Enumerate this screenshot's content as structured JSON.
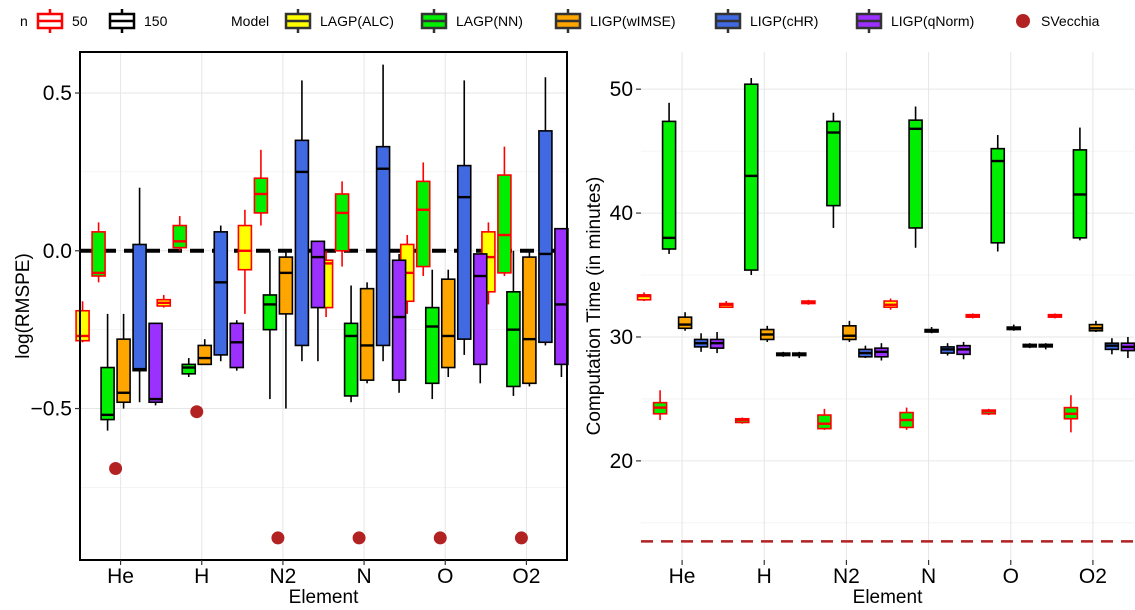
{
  "legend": {
    "n_title": "n",
    "model_title": "Model",
    "n_items": [
      {
        "label": "50",
        "color": "#ff0000"
      },
      {
        "label": "150",
        "color": "#000000"
      }
    ],
    "model_items": [
      {
        "label": "LAGP(ALC)",
        "color": "#ffff00"
      },
      {
        "label": "LAGP(NN)",
        "color": "#00ee00"
      },
      {
        "label": "LIGP(wIMSE)",
        "color": "#ffa500"
      },
      {
        "label": "LIGP(cHR)",
        "color": "#4169e1"
      },
      {
        "label": "LIGP(qNorm)",
        "color": "#9b30ff"
      },
      {
        "label": "SVecchia",
        "color": "#b22222",
        "point": true
      }
    ]
  },
  "chart_data": [
    {
      "type": "box",
      "xlabel": "Element",
      "ylabel": "log(RMSPE)",
      "categories": [
        "He",
        "H",
        "N2",
        "N",
        "O",
        "O2"
      ],
      "ylim": [
        -0.98,
        0.63
      ],
      "yticks": [
        -0.5,
        0.0,
        0.5
      ],
      "ytick_labels": [
        "−0.5",
        "0.0",
        "0.5"
      ],
      "reference_line": {
        "y": 0.0,
        "style": "dashed",
        "color": "#000000"
      },
      "grid": true,
      "series": [
        {
          "name": "LAGP(ALC)",
          "n": "50",
          "fill": "#ffff00",
          "border": "#ff0000",
          "boxes": [
            [
              -0.29,
              -0.285,
              -0.27,
              -0.19,
              -0.16
            ],
            [
              -0.18,
              -0.175,
              -0.165,
              -0.155,
              -0.14
            ],
            [
              -0.2,
              -0.06,
              0.0,
              0.08,
              0.13
            ],
            [
              -0.21,
              -0.18,
              -0.04,
              -0.03,
              0.0
            ],
            [
              -0.2,
              -0.16,
              -0.07,
              0.02,
              0.05
            ],
            [
              -0.17,
              -0.13,
              -0.02,
              0.06,
              0.09
            ]
          ]
        },
        {
          "name": "LAGP(NN)",
          "n": "50",
          "fill": "#00ee00",
          "border": "#ff0000",
          "boxes": [
            [
              -0.1,
              -0.08,
              -0.07,
              0.06,
              0.09
            ],
            [
              0.0,
              0.01,
              0.03,
              0.08,
              0.11
            ],
            [
              0.08,
              0.12,
              0.18,
              0.23,
              0.32
            ],
            [
              -0.05,
              0.0,
              0.12,
              0.18,
              0.22
            ],
            [
              -0.08,
              -0.05,
              0.13,
              0.22,
              0.28
            ],
            [
              -0.08,
              -0.07,
              0.05,
              0.24,
              0.33
            ]
          ]
        },
        {
          "name": "LAGP(NN)",
          "n": "150",
          "fill": "#00ee00",
          "border": "#000000",
          "boxes": [
            [
              -0.57,
              -0.535,
              -0.52,
              -0.37,
              -0.2
            ],
            [
              -0.4,
              -0.39,
              -0.37,
              -0.36,
              -0.34
            ],
            [
              -0.47,
              -0.25,
              -0.17,
              -0.14,
              0.0
            ],
            [
              -0.48,
              -0.46,
              -0.27,
              -0.23,
              -0.11
            ],
            [
              -0.47,
              -0.42,
              -0.24,
              -0.18,
              -0.06
            ],
            [
              -0.46,
              -0.43,
              -0.25,
              -0.13,
              0.0
            ]
          ]
        },
        {
          "name": "LIGP(wIMSE)",
          "n": "150",
          "fill": "#ffa500",
          "border": "#000000",
          "boxes": [
            [
              -0.5,
              -0.48,
              -0.45,
              -0.28,
              -0.2
            ],
            [
              -0.36,
              -0.36,
              -0.34,
              -0.3,
              -0.28
            ],
            [
              -0.5,
              -0.2,
              -0.07,
              -0.02,
              0.0
            ],
            [
              -0.42,
              -0.41,
              -0.3,
              -0.12,
              -0.1
            ],
            [
              -0.4,
              -0.37,
              -0.27,
              -0.09,
              -0.06
            ],
            [
              -0.43,
              -0.42,
              -0.28,
              -0.02,
              0.0
            ]
          ]
        },
        {
          "name": "LIGP(cHR)",
          "n": "150",
          "fill": "#4169e1",
          "border": "#000000",
          "boxes": [
            [
              -0.48,
              -0.38,
              -0.375,
              0.02,
              0.2
            ],
            [
              -0.35,
              -0.33,
              -0.1,
              0.06,
              0.08
            ],
            [
              -0.35,
              -0.3,
              0.25,
              0.35,
              0.54
            ],
            [
              -0.35,
              -0.3,
              0.26,
              0.33,
              0.59
            ],
            [
              -0.33,
              -0.28,
              0.17,
              0.27,
              0.54
            ],
            [
              -0.3,
              -0.29,
              -0.01,
              0.38,
              0.55
            ]
          ]
        },
        {
          "name": "LIGP(qNorm)",
          "n": "150",
          "fill": "#9b30ff",
          "border": "#000000",
          "boxes": [
            [
              -0.49,
              -0.48,
              -0.47,
              -0.23,
              -0.23
            ],
            [
              -0.38,
              -0.37,
              -0.29,
              -0.23,
              -0.22
            ],
            [
              -0.35,
              -0.18,
              -0.02,
              0.03,
              0.03
            ],
            [
              -0.45,
              -0.41,
              -0.21,
              -0.03,
              -0.01
            ],
            [
              -0.42,
              -0.36,
              -0.08,
              -0.01,
              -0.01
            ],
            [
              -0.4,
              -0.36,
              -0.17,
              0.07,
              0.07
            ]
          ]
        }
      ],
      "points": {
        "name": "SVecchia",
        "color": "#b22222",
        "values": [
          -0.69,
          -0.51,
          -0.91,
          -0.91,
          -0.91,
          -0.91
        ]
      }
    },
    {
      "type": "box",
      "xlabel": "Element",
      "ylabel": "Computation Time (in minutes)",
      "categories": [
        "He",
        "H",
        "N2",
        "N",
        "O",
        "O2"
      ],
      "ylim": [
        12,
        53
      ],
      "yticks": [
        20,
        30,
        40,
        50
      ],
      "ytick_labels": [
        "20",
        "30",
        "40",
        "50"
      ],
      "reference_line": {
        "y": 13.5,
        "style": "dashed",
        "color": "#b22222",
        "label": "SVecchia"
      },
      "grid": true,
      "series": [
        {
          "name": "LAGP(ALC)",
          "n": "50",
          "fill": "#ffff00",
          "border": "#ff0000",
          "boxes": [
            [
              32.9,
              33.0,
              33.3,
              33.4,
              33.6
            ],
            [
              32.4,
              32.4,
              32.6,
              32.7,
              32.9
            ],
            [
              32.6,
              32.7,
              32.8,
              32.9,
              33.0
            ],
            [
              32.2,
              32.4,
              32.6,
              32.9,
              33.1
            ],
            [
              31.5,
              31.6,
              31.7,
              31.8,
              31.9
            ],
            [
              31.5,
              31.6,
              31.7,
              31.8,
              31.9
            ]
          ]
        },
        {
          "name": "LAGP(NN)",
          "n": "50",
          "fill": "#00ee00",
          "border": "#ff0000",
          "boxes": [
            [
              23.3,
              23.8,
              24.3,
              24.7,
              25.7
            ],
            [
              23.0,
              23.1,
              23.3,
              23.4,
              23.5
            ],
            [
              22.5,
              22.6,
              23.0,
              23.7,
              24.2
            ],
            [
              22.5,
              22.7,
              23.3,
              23.9,
              24.3
            ],
            [
              23.7,
              23.8,
              24.0,
              24.1,
              24.2
            ],
            [
              22.3,
              23.4,
              23.8,
              24.3,
              25.3
            ]
          ]
        },
        {
          "name": "LAGP(NN)",
          "n": "150",
          "fill": "#00ee00",
          "border": "#000000",
          "boxes": [
            [
              36.7,
              37.1,
              38.0,
              47.4,
              48.9
            ],
            [
              35.0,
              35.4,
              43.0,
              50.4,
              50.9
            ],
            [
              38.8,
              40.6,
              46.5,
              47.4,
              48.1
            ],
            [
              37.2,
              38.8,
              46.8,
              47.5,
              48.6
            ],
            [
              36.9,
              37.6,
              44.2,
              45.2,
              46.3
            ],
            [
              37.8,
              38.0,
              41.5,
              45.1,
              46.9
            ]
          ]
        },
        {
          "name": "LIGP(wIMSE)",
          "n": "150",
          "fill": "#ffa500",
          "border": "#000000",
          "boxes": [
            [
              30.5,
              30.7,
              31.0,
              31.6,
              32.0
            ],
            [
              29.6,
              29.8,
              30.2,
              30.6,
              30.9
            ],
            [
              29.6,
              29.8,
              30.1,
              30.9,
              31.3
            ],
            [
              30.3,
              30.4,
              30.5,
              30.6,
              30.8
            ],
            [
              30.5,
              30.6,
              30.7,
              30.8,
              31.0
            ],
            [
              30.4,
              30.5,
              30.7,
              31.0,
              31.3
            ]
          ]
        },
        {
          "name": "LIGP(cHR)",
          "n": "150",
          "fill": "#4169e1",
          "border": "#000000",
          "boxes": [
            [
              28.8,
              29.2,
              29.5,
              29.8,
              30.3
            ],
            [
              28.4,
              28.5,
              28.6,
              28.7,
              28.8
            ],
            [
              28.3,
              28.4,
              28.7,
              29.0,
              29.3
            ],
            [
              28.5,
              28.7,
              29.0,
              29.2,
              29.5
            ],
            [
              29.1,
              29.2,
              29.3,
              29.4,
              29.5
            ],
            [
              28.6,
              29.0,
              29.3,
              29.5,
              29.9
            ]
          ]
        },
        {
          "name": "LIGP(qNorm)",
          "n": "150",
          "fill": "#9b30ff",
          "border": "#000000",
          "boxes": [
            [
              28.7,
              29.1,
              29.5,
              29.8,
              30.4
            ],
            [
              28.3,
              28.5,
              28.6,
              28.7,
              28.8
            ],
            [
              28.1,
              28.4,
              28.8,
              29.1,
              29.5
            ],
            [
              28.2,
              28.6,
              29.0,
              29.3,
              29.6
            ],
            [
              29.0,
              29.2,
              29.3,
              29.4,
              29.5
            ],
            [
              28.3,
              28.9,
              29.2,
              29.5,
              30.0
            ]
          ]
        }
      ],
      "points": null
    }
  ]
}
